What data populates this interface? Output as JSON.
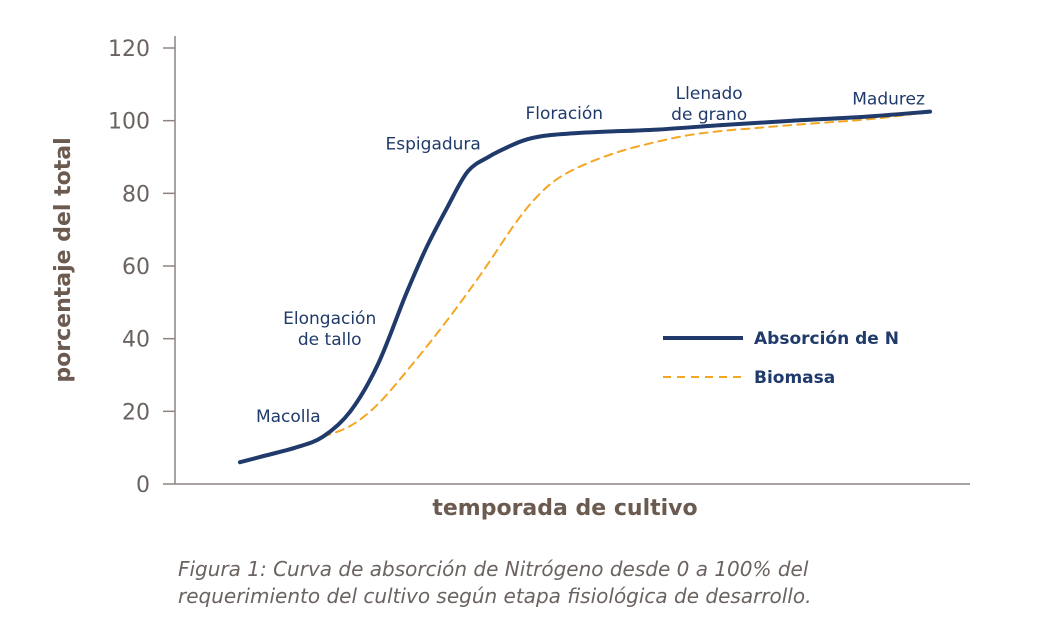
{
  "chart_data": {
    "type": "line",
    "xlabel": "temporada de cultivo",
    "ylabel": "porcentaje del total",
    "ylim": [
      0,
      120
    ],
    "yticks": [
      0,
      20,
      40,
      60,
      80,
      100,
      120
    ],
    "xlim": [
      0,
      100
    ],
    "grid": false,
    "legend_position": "right",
    "series": [
      {
        "name": "Absorción de N",
        "style": "solid",
        "color": "#1f3a6b",
        "x": [
          0,
          3,
          8,
          12,
          16,
          20,
          24,
          27,
          30,
          33,
          36,
          38,
          41,
          44,
          48,
          53,
          60,
          70,
          80,
          90,
          100
        ],
        "y": [
          6,
          7.5,
          10,
          13,
          20,
          33,
          52,
          65,
          76,
          86,
          90,
          92,
          94.5,
          95.8,
          96.5,
          97,
          97.5,
          98.8,
          100,
          101,
          102.5
        ]
      },
      {
        "name": "Biomasa",
        "style": "dashed",
        "color": "#f5a623",
        "x": [
          12,
          16,
          20,
          25,
          30,
          35,
          40,
          43,
          46,
          50,
          55,
          60,
          65,
          70,
          75,
          80,
          85,
          90,
          95,
          100
        ],
        "y": [
          13,
          16,
          22,
          33,
          45,
          58,
          72,
          79,
          84,
          88,
          91.5,
          94,
          96,
          97.2,
          98,
          98.8,
          99.5,
          100.2,
          101.2,
          102.5
        ]
      }
    ],
    "annotations": [
      {
        "lines": [
          "Macolla"
        ],
        "x": 7,
        "y": 17
      },
      {
        "lines": [
          "Elongación",
          "de tallo"
        ],
        "x": 13,
        "y": 44
      },
      {
        "lines": [
          "Espigadura"
        ],
        "x": 28,
        "y": 92
      },
      {
        "lines": [
          "Floración"
        ],
        "x": 47,
        "y": 100.5
      },
      {
        "lines": [
          "Llenado",
          "de grano"
        ],
        "x": 68,
        "y": 106
      },
      {
        "lines": [
          "Madurez"
        ],
        "x": 94,
        "y": 104.5
      }
    ]
  },
  "caption": {
    "line1": "Figura 1: Curva de absorción de Nitrógeno desde 0 a 100% del",
    "line2": "requerimiento del cultivo según etapa fisiológica de desarrollo."
  }
}
